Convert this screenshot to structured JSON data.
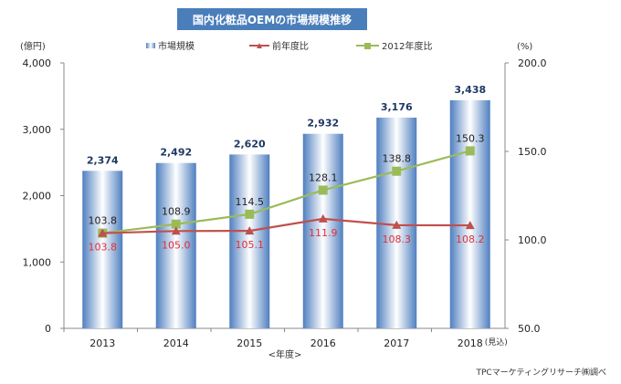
{
  "chart_data": {
    "type": "bar+line",
    "title": "国内化粧品OEMの市場規模推移",
    "categories": [
      "2013",
      "2014",
      "2015",
      "2016",
      "2017",
      "2018"
    ],
    "category_suffix": "(見込)",
    "xlabel": "<年度>",
    "ylabel_left": "(億円)",
    "ylabel_right": "(%)",
    "ylim_left": [
      0,
      4000
    ],
    "ylim_right": [
      50,
      200
    ],
    "yticks_left": [
      "0",
      "1,000",
      "2,000",
      "3,000",
      "4,000"
    ],
    "yticks_right": [
      "50.0",
      "100.0",
      "150.0",
      "200.0"
    ],
    "legend_position": "top",
    "series": [
      {
        "name": "市場規模",
        "type": "bar",
        "axis": "left",
        "color": "#4f81bd",
        "values": [
          2374,
          2492,
          2620,
          2932,
          3176,
          3438
        ],
        "labels": [
          "2,374",
          "2,492",
          "2,620",
          "2,932",
          "3,176",
          "3,438"
        ]
      },
      {
        "name": "前年度比",
        "type": "line",
        "axis": "right",
        "color": "#c0504d",
        "marker": "triangle",
        "values": [
          103.8,
          105.0,
          105.1,
          111.9,
          108.3,
          108.2
        ],
        "labels": [
          "103.8",
          "105.0",
          "105.1",
          "111.9",
          "108.3",
          "108.2"
        ]
      },
      {
        "name": "2012年度比",
        "type": "line",
        "axis": "right",
        "color": "#9bbb59",
        "marker": "square",
        "values": [
          103.8,
          108.9,
          114.5,
          128.1,
          138.8,
          150.3
        ],
        "labels": [
          "103.8",
          "108.9",
          "114.5",
          "128.1",
          "138.8",
          "150.3"
        ]
      }
    ],
    "source": "TPCマーケティングリサーチ㈱調べ"
  }
}
